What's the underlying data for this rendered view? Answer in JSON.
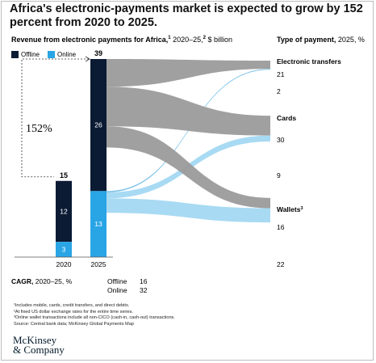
{
  "title": "Africa's electronic-payments market is expected to grow by 152 percent from 2020 to 2025.",
  "left_subtitle": {
    "main": "Revenue from electronic payments for Africa,",
    "sup1": "1",
    "mid": " 2020–25,",
    "sup2": "2",
    "rest": " $ billion"
  },
  "right_subtitle": {
    "main": "Type of payment,",
    "rest": " 2025, %"
  },
  "legend": [
    {
      "label": "Offline",
      "color": "#0b1b34"
    },
    {
      "label": "Online",
      "color": "#29a5e6"
    }
  ],
  "growth_annotation": "152%",
  "colors": {
    "offline": "#0b1b34",
    "online": "#29a5e6",
    "flow_gray": "#9b9b9b",
    "flow_blue": "#9fd6f2",
    "flow_blue_dark": "#6fbbe6"
  },
  "chart_data": {
    "type": "sankey",
    "bars": [
      {
        "year": "2020",
        "total": "15",
        "offline": 12,
        "online": 3
      },
      {
        "year": "2025",
        "total": "39",
        "offline": 26,
        "online": 13
      }
    ],
    "payment_types": [
      {
        "name": "Electronic transfers",
        "sup": "",
        "offline": 21,
        "online": 2
      },
      {
        "name": "Cards",
        "sup": "",
        "offline": 30,
        "online": 9
      },
      {
        "name": "Wallets",
        "sup": "3",
        "offline": 16,
        "online": 22
      }
    ]
  },
  "cagr": {
    "title": "CAGR,",
    "rest": " 2020–25, %",
    "rows": [
      {
        "label": "Offline",
        "value": "16"
      },
      {
        "label": "Online",
        "value": "32"
      }
    ]
  },
  "footnotes": [
    "¹Includes mobile, cards, credit transfers, and direct debits.",
    "²At fixed US dollar exchange rates for the entire time series.",
    "³Online wallet transactions include all non-CICO (cash-in, cash-out) transactions.",
    "Source: Central bank data; McKinsey Global Payments Map"
  ],
  "logo": {
    "line1": "McKinsey",
    "line2": "& Company"
  }
}
